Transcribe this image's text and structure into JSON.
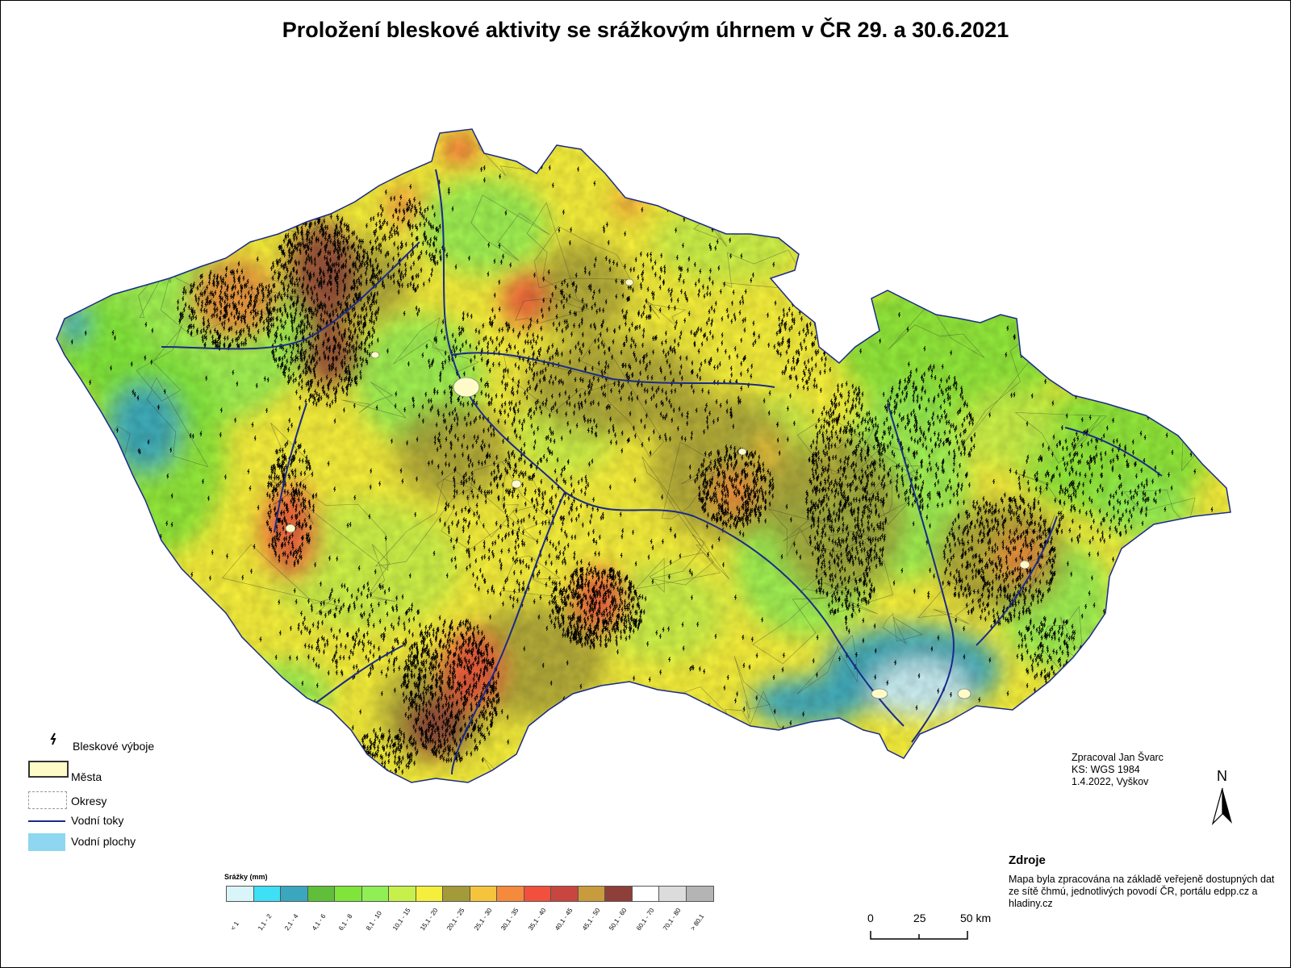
{
  "title": "Proložení bleskové aktivity se srážkovým úhrnem v ČR 29. a 30.6.2021",
  "legend": {
    "lightning": "Bleskové výboje",
    "cities": "Města",
    "districts": "Okresy",
    "rivers": "Vodní toky",
    "water_bodies": "Vodní plochy",
    "colors": {
      "cities": "#fffbc8",
      "rivers": "#1a2a8a",
      "water_bodies": "#8fd6f0"
    }
  },
  "precip_legend": {
    "title": "Srážky (mm)",
    "classes": [
      {
        "label": "< 1",
        "color": "#d9f5fa"
      },
      {
        "label": "1,1 - 2",
        "color": "#3ee0f5"
      },
      {
        "label": "2,1 - 4",
        "color": "#3aa7bf"
      },
      {
        "label": "4,1 - 6",
        "color": "#5fbf3a"
      },
      {
        "label": "6,1 - 8",
        "color": "#7fe53a"
      },
      {
        "label": "8,1 - 10",
        "color": "#8fef55"
      },
      {
        "label": "10,1 - 15",
        "color": "#c6f04a"
      },
      {
        "label": "15,1 - 20",
        "color": "#f5ee3c"
      },
      {
        "label": "20,1 - 25",
        "color": "#a39a3a"
      },
      {
        "label": "25,1 - 30",
        "color": "#f6c43c"
      },
      {
        "label": "30,1 - 35",
        "color": "#f58a3c"
      },
      {
        "label": "35,1 - 40",
        "color": "#f0503c"
      },
      {
        "label": "40,1 - 45",
        "color": "#c8463f"
      },
      {
        "label": "45,1 - 50",
        "color": "#c89c3c"
      },
      {
        "label": "50,1 - 60",
        "color": "#8f3f3a"
      },
      {
        "label": "60,1 - 70",
        "color": "#ffffff"
      },
      {
        "label": "70,1 - 80",
        "color": "#dcdcdc"
      },
      {
        "label": "> 80,1",
        "color": "#b4b4b4"
      }
    ]
  },
  "credit": [
    "Zpracoval Jan Švarc",
    "KS: WGS 1984",
    "1.4.2022, Vyškov"
  ],
  "north_label": "N",
  "sources": {
    "title": "Zdroje",
    "text": "Mapa byla zpracována na základě veřejeně dostupných dat ze sítě čhmú, jednotlivých povodí ČR, portálu edpp.cz a hladiny.cz"
  },
  "scale_bar": {
    "labels": [
      "0",
      "25",
      "50 km"
    ]
  }
}
